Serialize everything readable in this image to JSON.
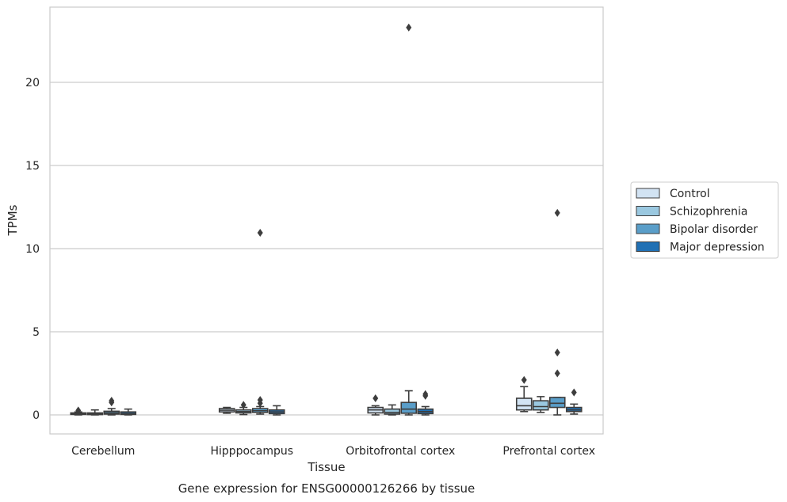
{
  "chart_data": {
    "type": "box",
    "xlabel": "Tissue",
    "ylabel": "TPMs",
    "caption": "Gene expression for ENSG00000126266 by tissue",
    "categories": [
      "Cerebellum",
      "Hipppocampus",
      "Orbitofrontal cortex",
      "Prefrontal cortex"
    ],
    "yticks": [
      0,
      5,
      10,
      15,
      20
    ],
    "ylim": [
      -1.15,
      24.5
    ],
    "grid": "horizontal",
    "legend_position": "right",
    "series": [
      {
        "name": "Control",
        "color": "#d2e3f3",
        "boxes": [
          {
            "q1": 0.03,
            "median": 0.07,
            "q3": 0.12,
            "whisker_low": 0.0,
            "whisker_high": 0.18,
            "outliers": [
              0.27
            ]
          },
          {
            "q1": 0.18,
            "median": 0.28,
            "q3": 0.38,
            "whisker_low": 0.1,
            "whisker_high": 0.45,
            "outliers": []
          },
          {
            "q1": 0.12,
            "median": 0.3,
            "q3": 0.45,
            "whisker_low": 0.0,
            "whisker_high": 0.55,
            "outliers": [
              1.0
            ]
          },
          {
            "q1": 0.3,
            "median": 0.55,
            "q3": 1.0,
            "whisker_low": 0.2,
            "whisker_high": 1.7,
            "outliers": [
              2.1
            ]
          }
        ]
      },
      {
        "name": "Schizophrenia",
        "color": "#9ac8e0",
        "boxes": [
          {
            "q1": 0.02,
            "median": 0.06,
            "q3": 0.12,
            "whisker_low": 0.0,
            "whisker_high": 0.3,
            "outliers": []
          },
          {
            "q1": 0.12,
            "median": 0.2,
            "q3": 0.3,
            "whisker_low": 0.02,
            "whisker_high": 0.45,
            "outliers": [
              0.6
            ]
          },
          {
            "q1": 0.05,
            "median": 0.15,
            "q3": 0.35,
            "whisker_low": 0.0,
            "whisker_high": 0.6,
            "outliers": []
          },
          {
            "q1": 0.3,
            "median": 0.5,
            "q3": 0.85,
            "whisker_low": 0.15,
            "whisker_high": 1.1,
            "outliers": []
          }
        ]
      },
      {
        "name": "Bipolar disorder",
        "color": "#5a9ec9",
        "boxes": [
          {
            "q1": 0.05,
            "median": 0.12,
            "q3": 0.22,
            "whisker_low": 0.0,
            "whisker_high": 0.38,
            "outliers": [
              0.75,
              0.85
            ]
          },
          {
            "q1": 0.15,
            "median": 0.25,
            "q3": 0.38,
            "whisker_low": 0.05,
            "whisker_high": 0.5,
            "outliers": [
              0.7,
              0.9,
              10.95
            ]
          },
          {
            "q1": 0.1,
            "median": 0.35,
            "q3": 0.75,
            "whisker_low": 0.0,
            "whisker_high": 1.45,
            "outliers": [
              23.3
            ]
          },
          {
            "q1": 0.45,
            "median": 0.7,
            "q3": 1.05,
            "whisker_low": 0.0,
            "whisker_high": 1.05,
            "outliers": [
              2.5,
              3.75,
              12.15
            ]
          }
        ]
      },
      {
        "name": "Major depression",
        "color": "#2070b4",
        "boxes": [
          {
            "q1": 0.03,
            "median": 0.08,
            "q3": 0.18,
            "whisker_low": 0.0,
            "whisker_high": 0.35,
            "outliers": []
          },
          {
            "q1": 0.08,
            "median": 0.18,
            "q3": 0.3,
            "whisker_low": 0.0,
            "whisker_high": 0.55,
            "outliers": []
          },
          {
            "q1": 0.08,
            "median": 0.2,
            "q3": 0.35,
            "whisker_low": 0.0,
            "whisker_high": 0.5,
            "outliers": [
              1.15,
              1.25
            ]
          },
          {
            "q1": 0.2,
            "median": 0.3,
            "q3": 0.45,
            "whisker_low": 0.05,
            "whisker_high": 0.65,
            "outliers": [
              1.35
            ]
          }
        ]
      }
    ]
  }
}
